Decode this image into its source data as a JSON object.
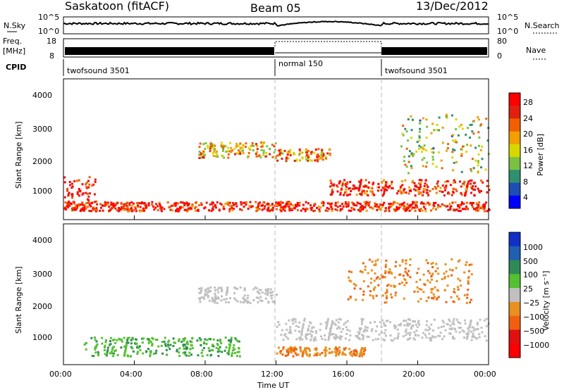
{
  "header": {
    "station": "Saskatoon (fitACF)",
    "beam": "Beam 05",
    "date": "13/Dec/2012"
  },
  "top_panels": {
    "nsky_label": "N.Sky",
    "nsearch_label": "N.Search",
    "nsky_ticks": [
      "10^5",
      "10^0"
    ],
    "nsearch_ticks": [
      "10^5",
      "10^0"
    ],
    "freq_label_1": "Freq.",
    "freq_label_2": "[MHz]",
    "freq_ticks": [
      "18",
      "8"
    ],
    "nave_label": "Nave",
    "nave_ticks": [
      "80",
      "0"
    ],
    "cpid_label": "CPID",
    "cpid_segments": [
      {
        "label": "twofsound 3501",
        "start_h": 0,
        "end_h": 12
      },
      {
        "label": "normal 150",
        "start_h": 12,
        "end_h": 18
      },
      {
        "label": "twofsound 3501",
        "start_h": 18,
        "end_h": 24
      }
    ]
  },
  "x_axis": {
    "ticks": [
      "00:00",
      "04:00",
      "08:00",
      "12:00",
      "16:00",
      "20:00",
      "00:00"
    ],
    "label": "Time UT"
  },
  "power_panel": {
    "ylabel": "Slant Range [km]",
    "yticks": [
      "4000",
      "3000",
      "2000",
      "1000"
    ],
    "colorbar_label": "Power [dB]",
    "colorbar_ticks": [
      "28",
      "24",
      "20",
      "16",
      "12",
      "8",
      "4"
    ],
    "colors": [
      "#0000ff",
      "#1e4db5",
      "#2f8f6f",
      "#7ac142",
      "#d8d800",
      "#f0a000",
      "#f06000",
      "#e02010",
      "#ff0000"
    ]
  },
  "velocity_panel": {
    "ylabel": "Slant Range [km]",
    "yticks": [
      "4000",
      "3000",
      "2000",
      "1000"
    ],
    "colorbar_label": "Velocity [m s⁻¹]",
    "colorbar_ticks": [
      "1000",
      "500",
      "100",
      "25",
      "−25",
      "−100",
      "−500",
      "−1000"
    ],
    "colors": [
      "#1030c8",
      "#2060b0",
      "#2e8b57",
      "#55c030",
      "#c0c0c0",
      "#e89020",
      "#f06010",
      "#e01010",
      "#ff0000"
    ]
  },
  "chart_data": {
    "type": "heatmap",
    "x_unit": "hours UT",
    "xlim": [
      0,
      24
    ],
    "ylim": [
      0,
      4500
    ],
    "power_db_range": [
      0,
      30
    ],
    "velocity_range": [
      -1000,
      1000
    ],
    "mode_change_hours": [
      12,
      18
    ],
    "echo_regions_power": [
      {
        "t_start": 0.0,
        "t_end": 1.8,
        "range_low": 600,
        "range_high": 1400,
        "power": 28
      },
      {
        "t_start": 0.0,
        "t_end": 24.0,
        "range_low": 300,
        "range_high": 600,
        "power": 26
      },
      {
        "t_start": 7.5,
        "t_end": 12.0,
        "range_low": 2000,
        "range_high": 2500,
        "power": 18
      },
      {
        "t_start": 12.0,
        "t_end": 15.0,
        "range_low": 1900,
        "range_high": 2300,
        "power": 20
      },
      {
        "t_start": 15.0,
        "t_end": 24.0,
        "range_low": 800,
        "range_high": 1300,
        "power": 26
      },
      {
        "t_start": 19.0,
        "t_end": 24.0,
        "range_low": 1500,
        "range_high": 3400,
        "power": 14
      }
    ],
    "echo_regions_velocity": [
      {
        "t_start": 7.5,
        "t_end": 12.0,
        "range_low": 2000,
        "range_high": 2500,
        "velocity": 0
      },
      {
        "t_start": 12.0,
        "t_end": 24.0,
        "range_low": 800,
        "range_high": 1500,
        "velocity": 0
      },
      {
        "t_start": 1.0,
        "t_end": 10.0,
        "range_low": 300,
        "range_high": 900,
        "velocity": 100
      },
      {
        "t_start": 12.0,
        "t_end": 17.0,
        "range_low": 300,
        "range_high": 600,
        "velocity": -100
      },
      {
        "t_start": 16.0,
        "t_end": 23.0,
        "range_low": 2000,
        "range_high": 3400,
        "velocity": -200
      }
    ]
  }
}
